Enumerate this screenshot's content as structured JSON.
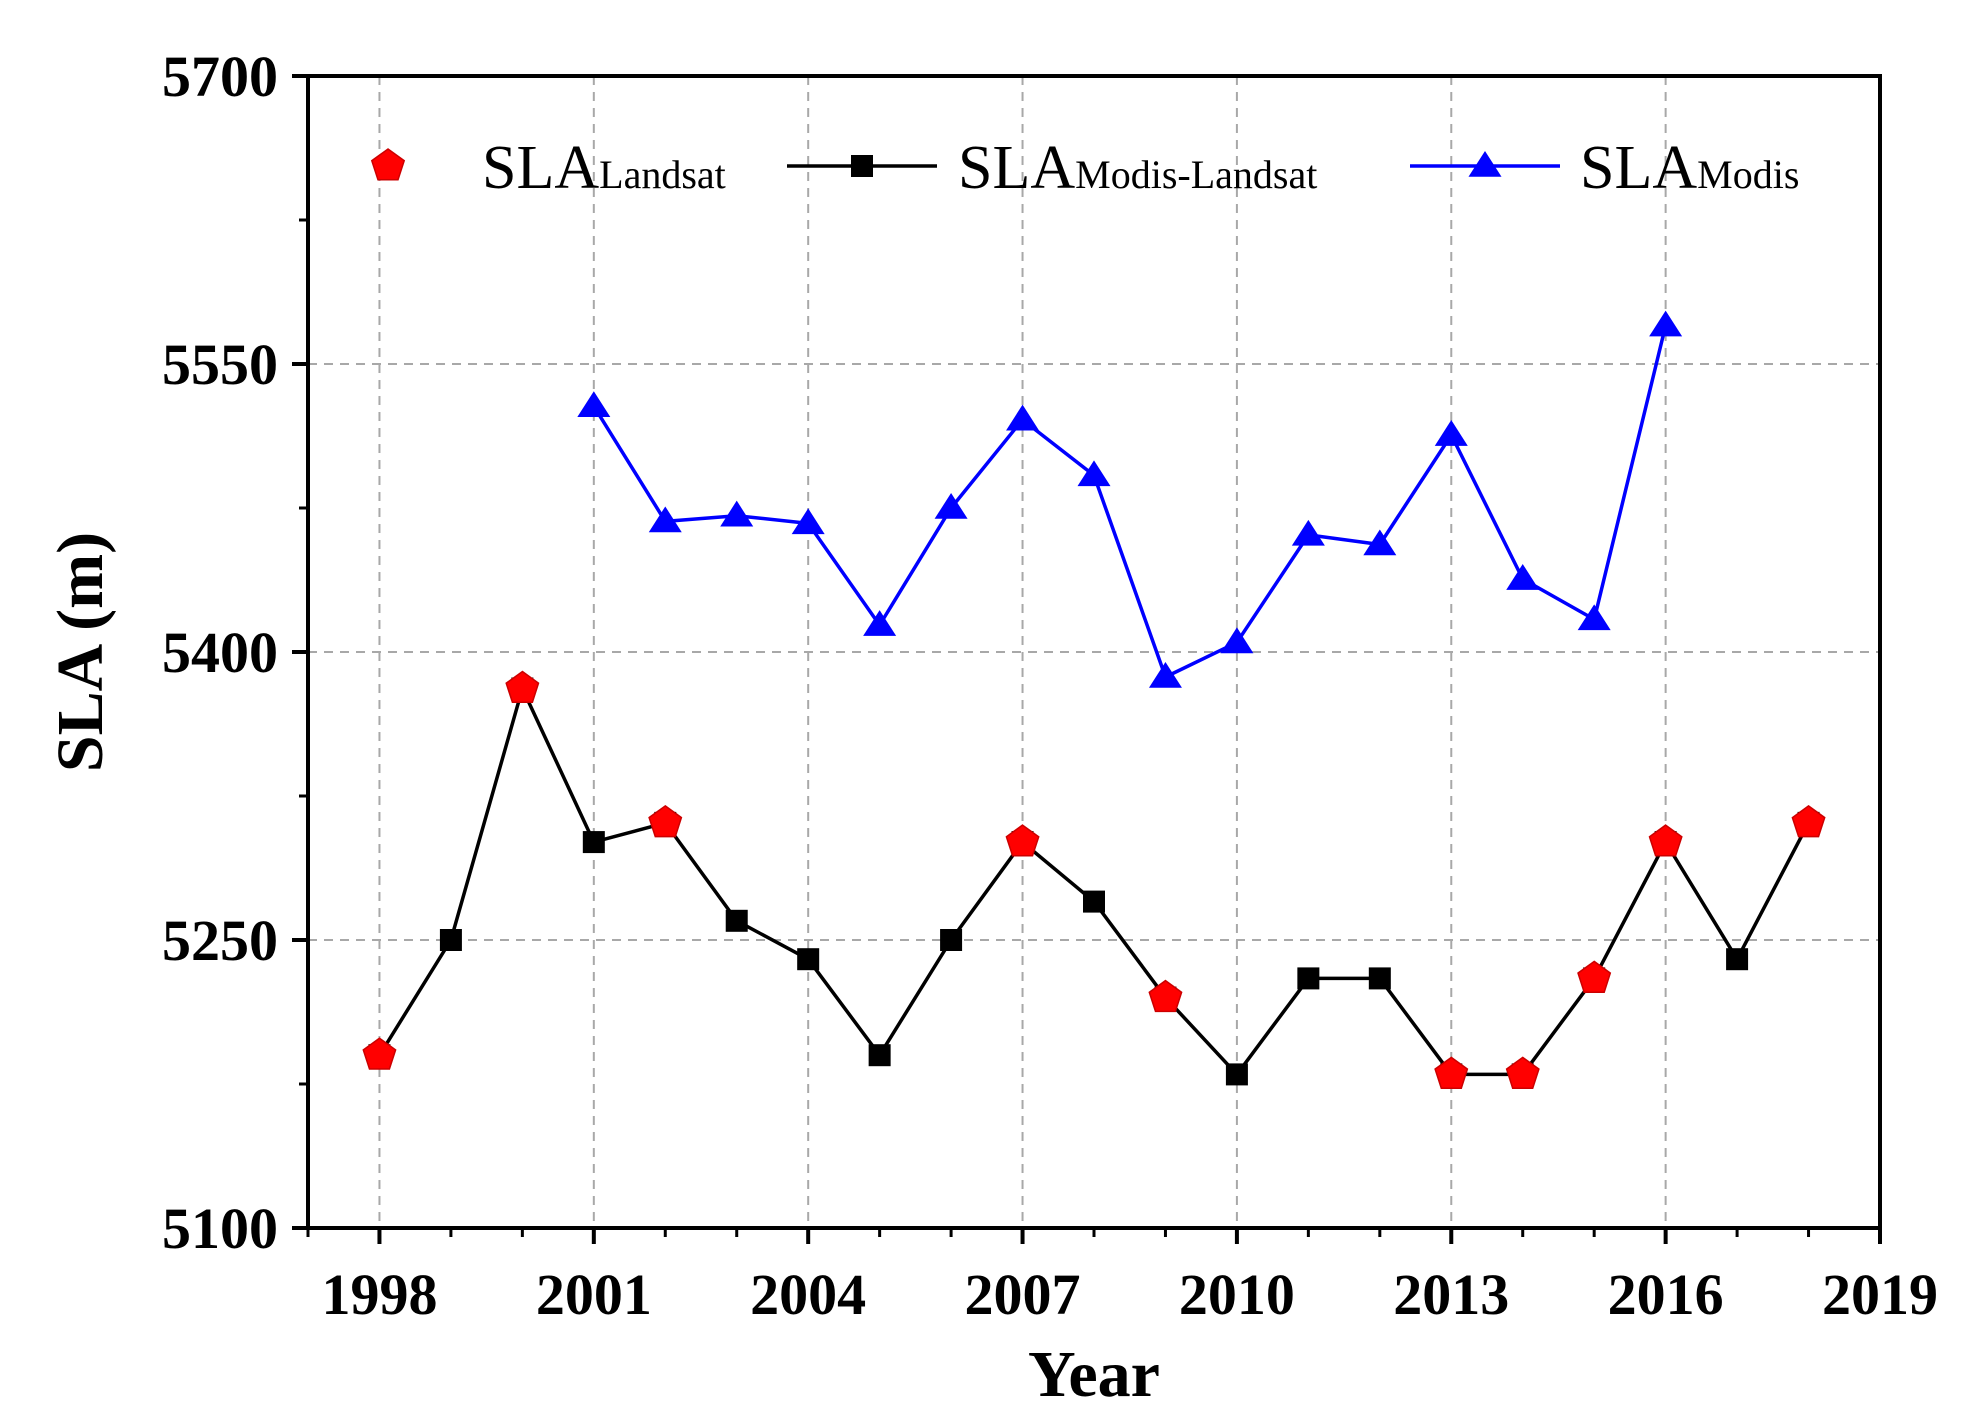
{
  "chart_data": {
    "type": "line",
    "title": "",
    "xlabel": "Year",
    "ylabel": "SLA (m)",
    "xlim": [
      1997,
      2019
    ],
    "ylim": [
      5100,
      5700
    ],
    "xticks": [
      1998,
      2001,
      2004,
      2007,
      2010,
      2013,
      2016,
      2019
    ],
    "yticks": [
      5100,
      5250,
      5400,
      5550,
      5700
    ],
    "xtick_labels": [
      "1998",
      "2001",
      "2004",
      "2007",
      "2010",
      "2013",
      "2016",
      "2019"
    ],
    "ytick_labels": [
      "5100",
      "5250",
      "5400",
      "5550",
      "5700"
    ],
    "grid": true,
    "legend_position": "top",
    "series": [
      {
        "name": "SLA Landsat",
        "label_main": "SLA",
        "label_sub": "Landsat",
        "color": "#ff0000",
        "marker": "pentagon",
        "line": false,
        "x": [
          1998,
          2000,
          2002,
          2007,
          2009,
          2013,
          2014,
          2015,
          2016,
          2018
        ],
        "y": [
          5190,
          5381,
          5311,
          5301,
          5220,
          5180,
          5180,
          5230,
          5301,
          5311
        ]
      },
      {
        "name": "SLA Modis-Landsat",
        "label_main": "SLA",
        "label_sub": "Modis-Landsat",
        "color": "#000000",
        "marker": "square",
        "line": true,
        "x": [
          1998,
          1999,
          2000,
          2001,
          2002,
          2003,
          2004,
          2005,
          2006,
          2007,
          2008,
          2009,
          2010,
          2011,
          2012,
          2013,
          2014,
          2015,
          2016,
          2017,
          2018
        ],
        "y": [
          5190,
          5250,
          5381,
          5301,
          5311,
          5260,
          5240,
          5190,
          5250,
          5301,
          5270,
          5220,
          5180,
          5230,
          5230,
          5180,
          5180,
          5230,
          5301,
          5240,
          5311
        ]
      },
      {
        "name": "SLA Modis",
        "label_main": "SLA",
        "label_sub": "Modis",
        "color": "#0000ff",
        "marker": "triangle",
        "line": true,
        "x": [
          2001,
          2002,
          2003,
          2004,
          2005,
          2006,
          2007,
          2008,
          2009,
          2010,
          2011,
          2012,
          2013,
          2014,
          2015,
          2016
        ],
        "y": [
          5528,
          5468,
          5471,
          5467,
          5414,
          5475,
          5521,
          5492,
          5387,
          5405,
          5461,
          5456,
          5513,
          5438,
          5417,
          5570
        ]
      }
    ]
  }
}
